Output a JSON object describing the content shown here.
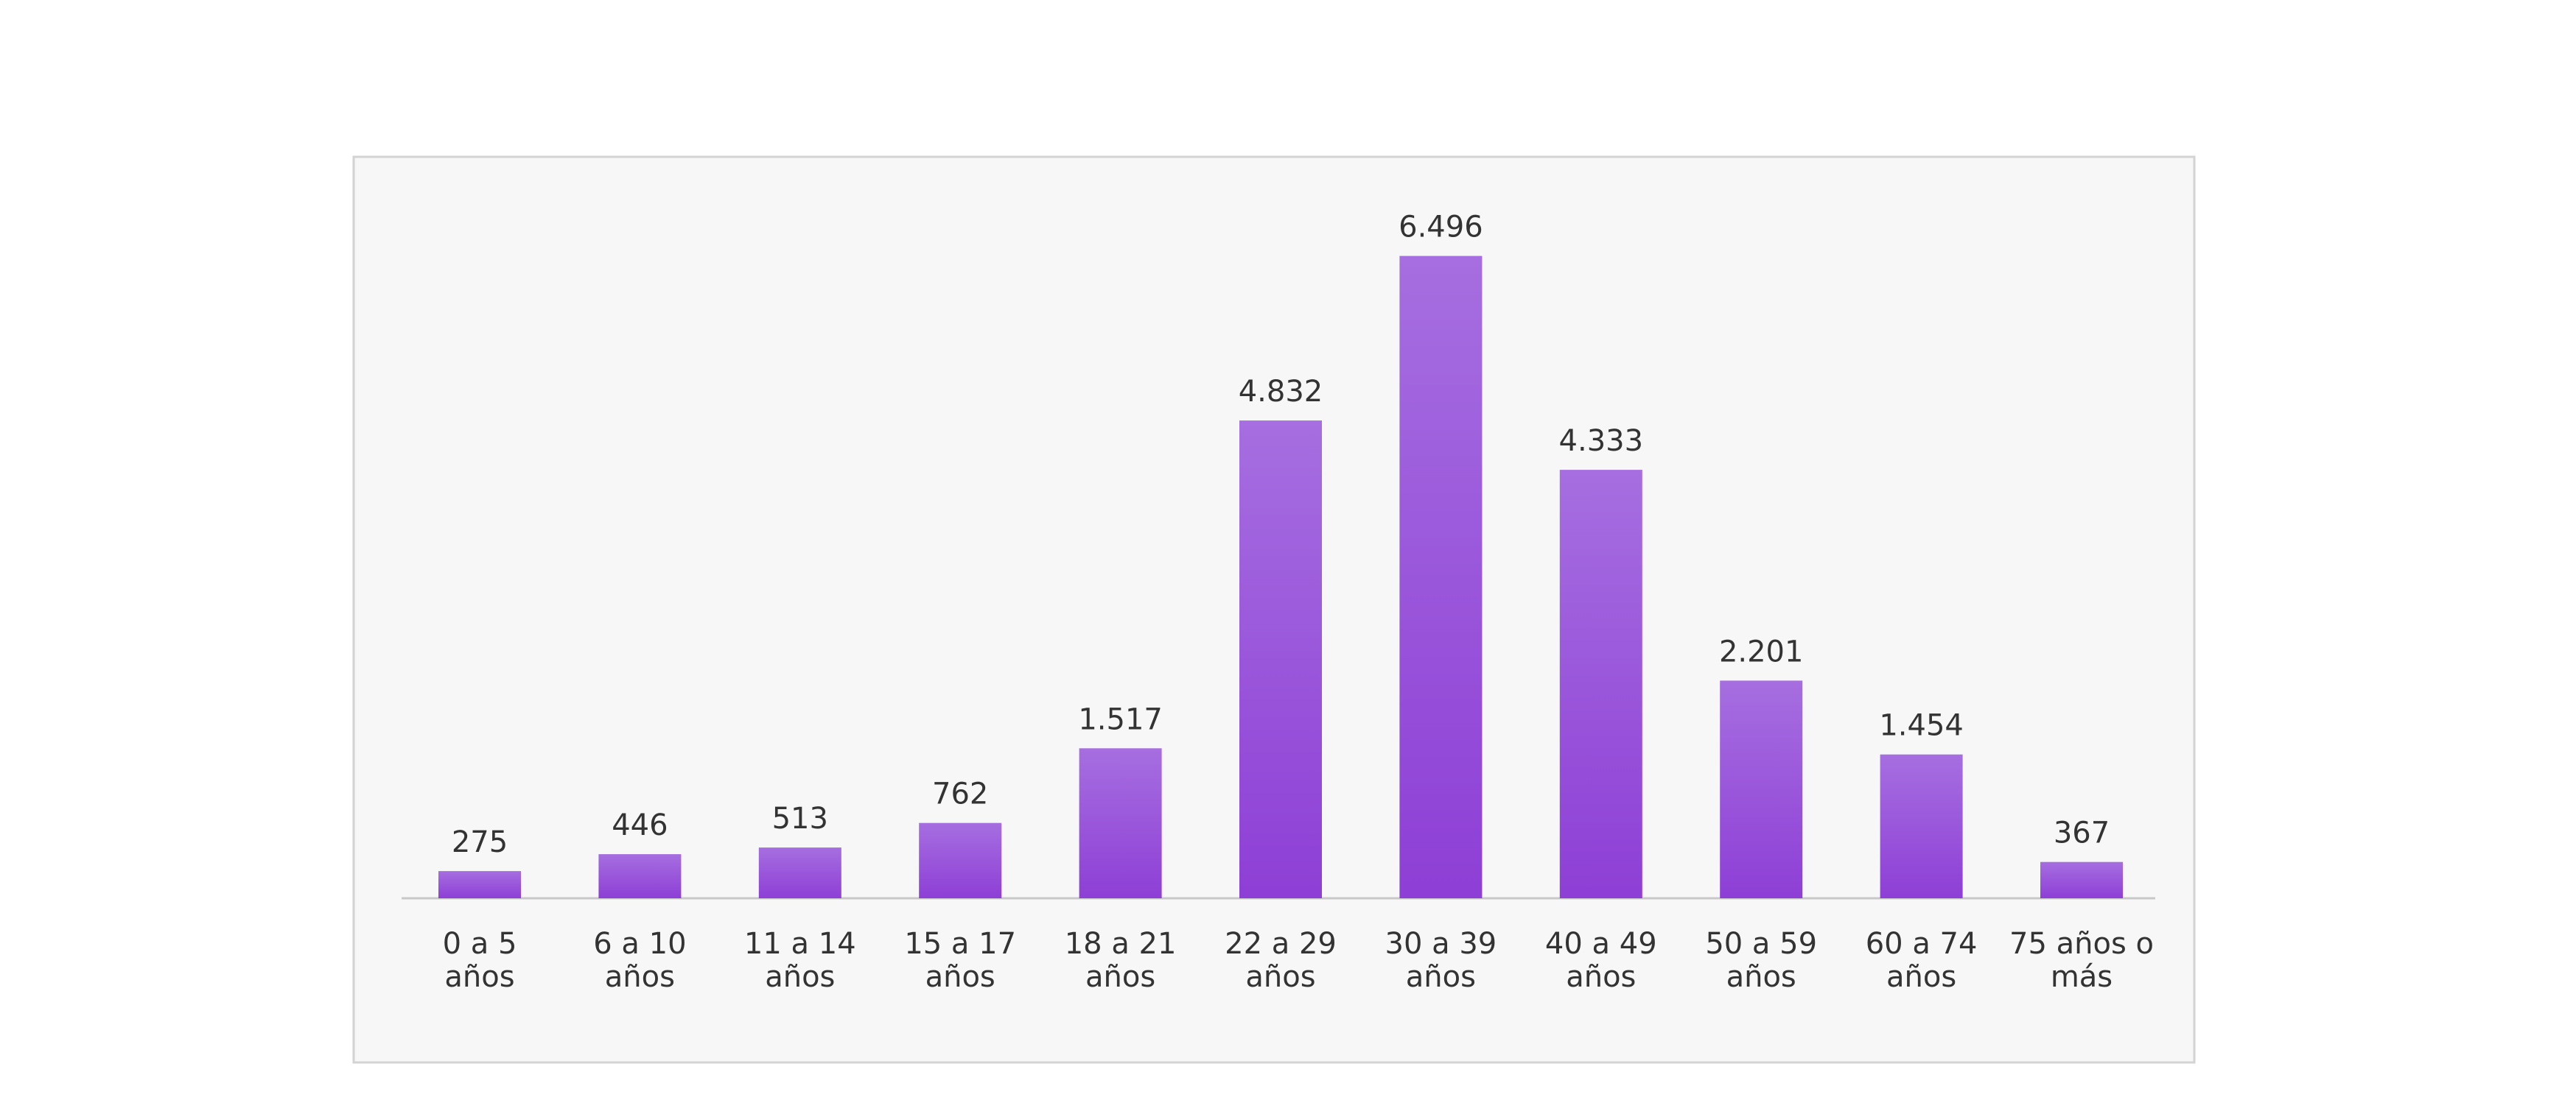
{
  "chart_data": {
    "type": "bar",
    "title": "",
    "xlabel": "",
    "ylabel": "",
    "categories": [
      [
        "0 a 5",
        "años"
      ],
      [
        "6 a 10",
        "años"
      ],
      [
        "11 a 14",
        "años"
      ],
      [
        "15 a 17",
        "años"
      ],
      [
        "18 a 21",
        "años"
      ],
      [
        "22 a 29",
        "años"
      ],
      [
        "30 a 39",
        "años"
      ],
      [
        "40 a 49",
        "años"
      ],
      [
        "50 a 59",
        "años"
      ],
      [
        "60 a 74",
        "años"
      ],
      [
        "75 años o",
        "más"
      ]
    ],
    "values": [
      275,
      446,
      513,
      762,
      1517,
      4832,
      6496,
      4333,
      2201,
      1454,
      367
    ],
    "value_labels": [
      "275",
      "446",
      "513",
      "762",
      "1.517",
      "4.832",
      "6.496",
      "4.333",
      "2.201",
      "1.454",
      "367"
    ],
    "ylim": [
      0,
      7000
    ],
    "grid": false,
    "legend": "none",
    "colors": {
      "bar_top": "#a66ee0",
      "bar_bottom": "#8e3fd6",
      "plot_background": "#f7f7f7",
      "plot_border": "#d3d3d3",
      "axis_line": "#c8c8c8",
      "text": "#333333"
    }
  }
}
